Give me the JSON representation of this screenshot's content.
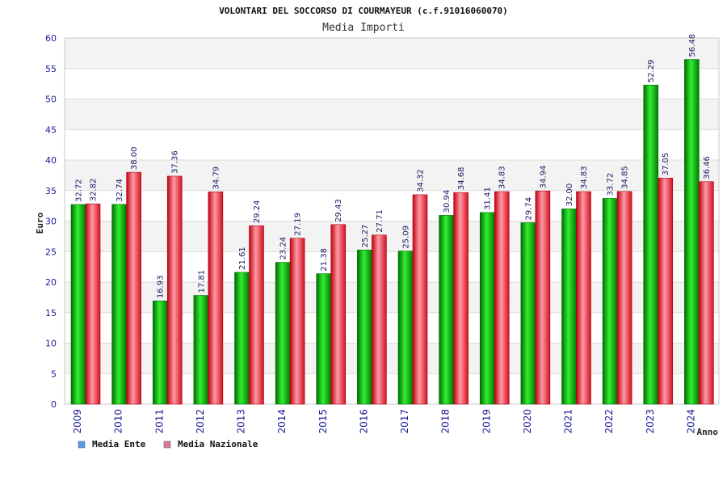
{
  "chart_data": {
    "type": "bar",
    "title": "VOLONTARI DEL SOCCORSO DI COURMAYEUR (c.f.91016060070)",
    "subtitle": "Media Importi",
    "xlabel": "Anno",
    "ylabel": "Euro",
    "ylim": [
      0,
      60
    ],
    "yticks": [
      0,
      5,
      10,
      15,
      20,
      25,
      30,
      35,
      40,
      45,
      50,
      55,
      60
    ],
    "grid": true,
    "legend_position": "bottom-left",
    "categories": [
      "2009",
      "2010",
      "2011",
      "2012",
      "2013",
      "2014",
      "2015",
      "2016",
      "2017",
      "2018",
      "2019",
      "2020",
      "2021",
      "2022",
      "2023",
      "2024"
    ],
    "series": [
      {
        "name": "Media Ente",
        "color": "#00b300",
        "legend_color": "#5599ee",
        "values": [
          32.72,
          32.74,
          16.93,
          17.81,
          21.61,
          23.24,
          21.38,
          25.27,
          25.09,
          30.94,
          31.41,
          29.74,
          32.0,
          33.72,
          52.29,
          56.48
        ],
        "labels": [
          "32.72",
          "32.74",
          "16.93",
          "17.81",
          "21.61",
          "23.24",
          "21.38",
          "25.27",
          "25.09",
          "30.94",
          "31.41",
          "29.74",
          "32.00",
          "33.72",
          "52.29",
          "56.48"
        ]
      },
      {
        "name": "Media Nazionale",
        "color": "#e0202a",
        "legend_color": "#dd7799",
        "values": [
          32.82,
          38.0,
          37.36,
          34.79,
          29.24,
          27.19,
          29.43,
          27.71,
          34.32,
          34.68,
          34.83,
          34.94,
          34.83,
          34.85,
          37.05,
          36.46
        ],
        "labels": [
          "32.82",
          "38.00",
          "37.36",
          "34.79",
          "29.24",
          "27.19",
          "29.43",
          "27.71",
          "34.32",
          "34.68",
          "34.83",
          "34.94",
          "34.83",
          "34.85",
          "37.05",
          "36.46"
        ]
      }
    ]
  }
}
